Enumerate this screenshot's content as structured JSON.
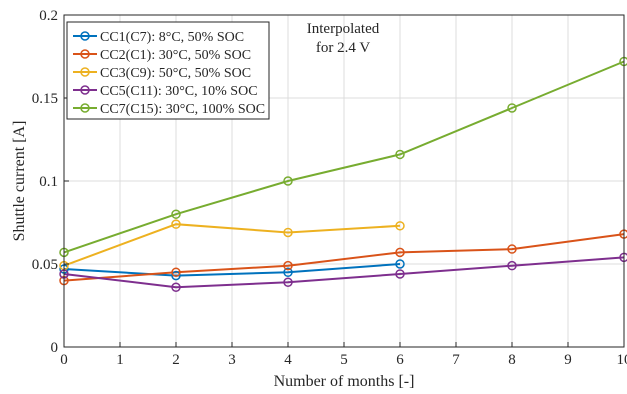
{
  "chart_data": {
    "type": "line",
    "title": "",
    "xlabel": "Number of months [-]",
    "ylabel": "Shuttle current [A]",
    "xlim": [
      0,
      10
    ],
    "ylim": [
      0,
      0.2
    ],
    "xticks": [
      0,
      1,
      2,
      3,
      4,
      5,
      6,
      7,
      8,
      9,
      10
    ],
    "xtick_labels": [
      "0",
      "1",
      "2",
      "3",
      "4",
      "5",
      "6",
      "7",
      "8",
      "9",
      "10"
    ],
    "yticks": [
      0,
      0.05,
      0.1,
      0.15,
      0.2
    ],
    "ytick_labels": [
      "0",
      "0.05",
      "0.1",
      "0.15",
      "0.2"
    ],
    "grid": true,
    "legend_position": "top-left",
    "annotation": [
      "Interpolated",
      "for 2.4 V"
    ],
    "series": [
      {
        "name": "CC1(C7): 8°C, 50% SOC",
        "color": "#0072bd",
        "x": [
          0,
          2,
          4,
          6
        ],
        "y": [
          0.047,
          0.043,
          0.045,
          0.05
        ]
      },
      {
        "name": "CC2(C1): 30°C, 50% SOC",
        "color": "#d95319",
        "x": [
          0,
          2,
          4,
          6,
          8,
          10
        ],
        "y": [
          0.04,
          0.045,
          0.049,
          0.057,
          0.059,
          0.068
        ]
      },
      {
        "name": "CC3(C9): 50°C, 50% SOC",
        "color": "#edb120",
        "x": [
          0,
          2,
          4,
          6
        ],
        "y": [
          0.049,
          0.074,
          0.069,
          0.073
        ]
      },
      {
        "name": "CC5(C11): 30°C, 10% SOC",
        "color": "#7e2f8e",
        "x": [
          0,
          2,
          4,
          6,
          8,
          10
        ],
        "y": [
          0.044,
          0.036,
          0.039,
          0.044,
          0.049,
          0.054
        ]
      },
      {
        "name": "CC7(C15): 30°C, 100% SOC",
        "color": "#77ac30",
        "x": [
          0,
          2,
          4,
          6,
          8,
          10
        ],
        "y": [
          0.057,
          0.08,
          0.1,
          0.116,
          0.144,
          0.172
        ]
      }
    ]
  }
}
